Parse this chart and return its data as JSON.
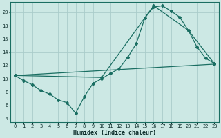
{
  "bg_color": "#cce8e4",
  "grid_color": "#aaccca",
  "line_color": "#1a6e62",
  "xlabel": "Humidex (Indice chaleur)",
  "xlim": [
    -0.5,
    23.5
  ],
  "ylim": [
    3.5,
    21.5
  ],
  "xticks": [
    0,
    1,
    2,
    3,
    4,
    5,
    6,
    7,
    8,
    9,
    10,
    11,
    12,
    13,
    14,
    15,
    16,
    17,
    18,
    19,
    20,
    21,
    22,
    23
  ],
  "yticks": [
    4,
    6,
    8,
    10,
    12,
    14,
    16,
    18,
    20
  ],
  "line1_x": [
    0,
    1,
    2,
    3,
    4,
    5,
    6,
    7,
    8,
    9,
    10,
    11,
    12,
    13,
    14,
    15,
    16,
    17,
    18,
    19,
    20,
    21,
    22,
    23
  ],
  "line1_y": [
    10.5,
    9.7,
    9.1,
    8.2,
    7.7,
    6.8,
    6.4,
    4.8,
    7.3,
    9.3,
    10.0,
    10.8,
    11.5,
    13.2,
    15.3,
    19.2,
    20.8,
    21.0,
    20.2,
    19.3,
    17.3,
    14.8,
    13.1,
    12.3
  ],
  "line2_x": [
    0,
    10,
    16,
    20,
    23
  ],
  "line2_y": [
    10.5,
    10.2,
    21.0,
    17.3,
    12.3
  ],
  "line3_x": [
    0,
    23
  ],
  "line3_y": [
    10.5,
    12.2
  ],
  "marker": "D",
  "markersize": 2.0,
  "linewidth": 0.9,
  "xlabel_fontsize": 6.0,
  "tick_fontsize": 5.0
}
